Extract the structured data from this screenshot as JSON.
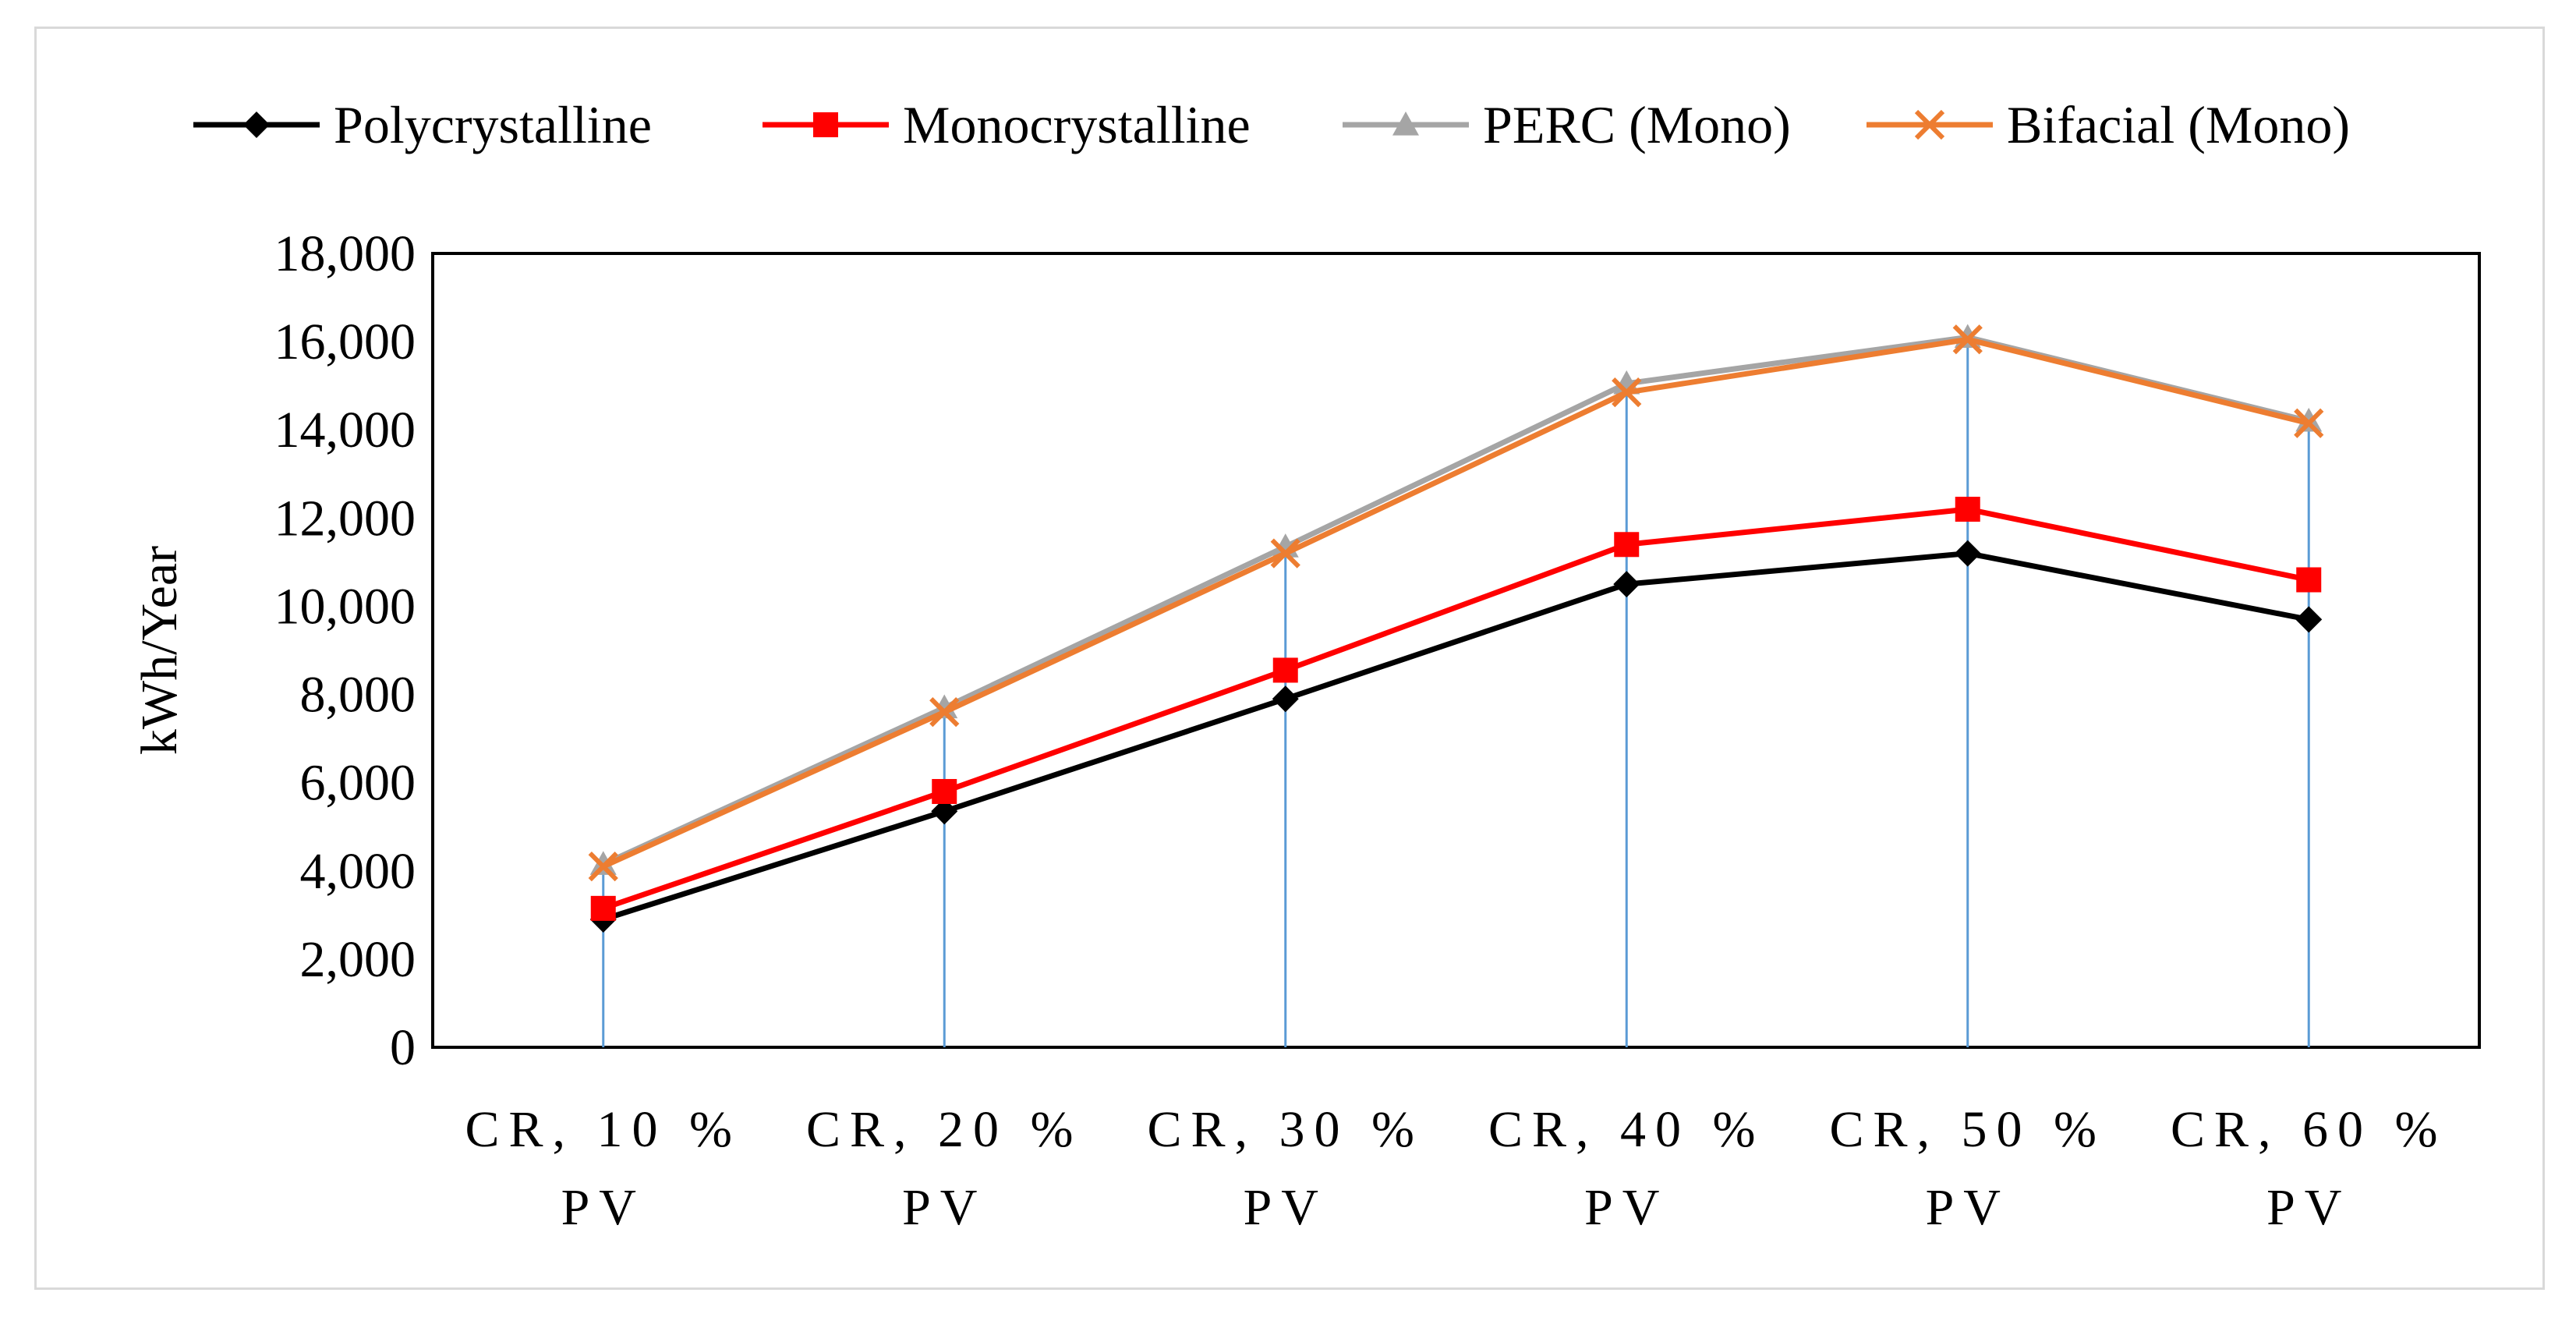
{
  "chart_data": {
    "type": "line",
    "title": "",
    "xlabel": "",
    "ylabel": "kWh/Year",
    "ylim": [
      0,
      18000
    ],
    "yticks": [
      0,
      2000,
      4000,
      6000,
      8000,
      10000,
      12000,
      14000,
      16000,
      18000
    ],
    "ytick_labels": [
      "0",
      "2,000",
      "4,000",
      "6,000",
      "8,000",
      "10,000",
      "12,000",
      "14,000",
      "16,000",
      "18,000"
    ],
    "categories": [
      [
        "CR, 10 %",
        "PV"
      ],
      [
        "CR, 20 %",
        "PV"
      ],
      [
        "CR, 30 %",
        "PV"
      ],
      [
        "CR, 40 %",
        "PV"
      ],
      [
        "CR, 50 %",
        "PV"
      ],
      [
        "CR, 60 %",
        "PV"
      ]
    ],
    "drop_lines": true,
    "legend_position": "top",
    "series": [
      {
        "name": "Polycrystalline",
        "color": "#000000",
        "marker": "diamond",
        "values": [
          2900,
          5350,
          7900,
          10500,
          11200,
          9700
        ]
      },
      {
        "name": "Monocrystalline",
        "color": "#ff0000",
        "marker": "square",
        "values": [
          3150,
          5800,
          8550,
          11400,
          12200,
          10600
        ]
      },
      {
        "name": "PERC (Mono)",
        "color": "#a5a5a5",
        "marker": "triangle",
        "values": [
          4150,
          7700,
          11350,
          15050,
          16100,
          14200
        ]
      },
      {
        "name": "Bifacial (Mono)",
        "color": "#ed7d31",
        "marker": "x",
        "values": [
          4100,
          7600,
          11200,
          14850,
          16050,
          14150
        ]
      }
    ]
  }
}
